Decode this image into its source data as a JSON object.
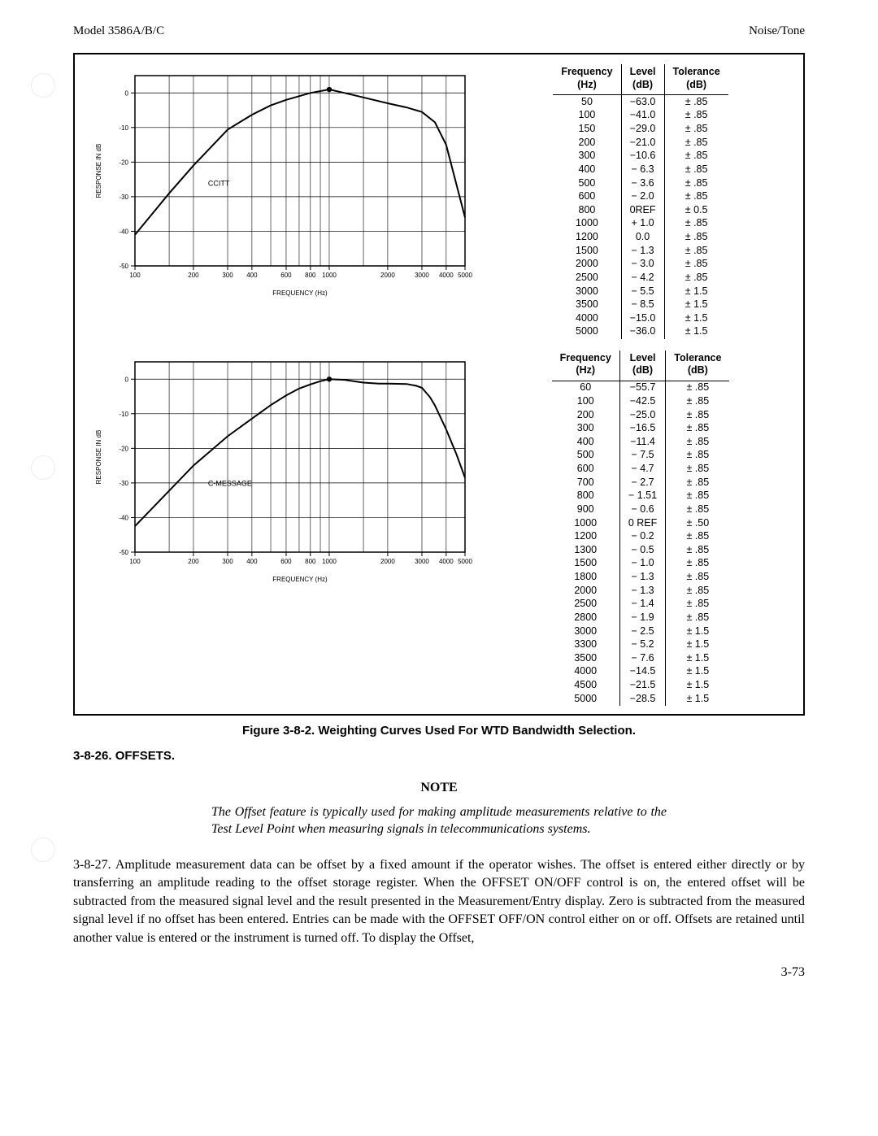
{
  "header": {
    "left": "Model 3586A/B/C",
    "right": "Noise/Tone"
  },
  "chart_common": {
    "xlabel": "FREQUENCY (Hz)",
    "ylabel": "RESPONSE IN dB",
    "xlim": [
      100,
      5000
    ],
    "ylim": [
      -50,
      5
    ],
    "ytick_step": 10,
    "xticks": [
      100,
      200,
      300,
      400,
      600,
      800,
      1000,
      2000,
      3000,
      4000,
      5000
    ],
    "xtick_labels": [
      "100",
      "200",
      "300",
      "400",
      "600",
      "800",
      "1000",
      "2000",
      "3000",
      "4000",
      "5000"
    ],
    "line_color": "#000000",
    "line_width": 2,
    "grid_color": "#000000",
    "background": "#ffffff",
    "axis_fontsize": 8,
    "label_fontsize": 8
  },
  "chart1": {
    "series_label": "CCITT",
    "points": [
      [
        50,
        -63.0
      ],
      [
        100,
        -41.0
      ],
      [
        150,
        -29.0
      ],
      [
        200,
        -21.0
      ],
      [
        300,
        -10.6
      ],
      [
        400,
        -6.3
      ],
      [
        500,
        -3.6
      ],
      [
        600,
        -2.0
      ],
      [
        800,
        0.0
      ],
      [
        1000,
        1.0
      ],
      [
        1200,
        0.0
      ],
      [
        1500,
        -1.3
      ],
      [
        2000,
        -3.0
      ],
      [
        2500,
        -4.2
      ],
      [
        3000,
        -5.5
      ],
      [
        3500,
        -8.5
      ],
      [
        4000,
        -15.0
      ],
      [
        5000,
        -36.0
      ]
    ]
  },
  "chart2": {
    "series_label": "C-MESSAGE",
    "points": [
      [
        60,
        -55.7
      ],
      [
        100,
        -42.5
      ],
      [
        200,
        -25.0
      ],
      [
        300,
        -16.5
      ],
      [
        400,
        -11.4
      ],
      [
        500,
        -7.5
      ],
      [
        600,
        -4.7
      ],
      [
        700,
        -2.7
      ],
      [
        800,
        -1.51
      ],
      [
        900,
        -0.6
      ],
      [
        1000,
        0.0
      ],
      [
        1200,
        -0.2
      ],
      [
        1300,
        -0.5
      ],
      [
        1500,
        -1.0
      ],
      [
        1800,
        -1.3
      ],
      [
        2000,
        -1.3
      ],
      [
        2500,
        -1.4
      ],
      [
        2800,
        -1.9
      ],
      [
        3000,
        -2.5
      ],
      [
        3300,
        -5.2
      ],
      [
        3500,
        -7.6
      ],
      [
        4000,
        -14.5
      ],
      [
        4500,
        -21.5
      ],
      [
        5000,
        -28.5
      ]
    ]
  },
  "table_headers": {
    "col1a": "Frequency",
    "col1b": "(Hz)",
    "col2a": "Level",
    "col2b": "(dB)",
    "col3a": "Tolerance",
    "col3b": "(dB)"
  },
  "table1": {
    "rows": [
      [
        "50",
        "−63.0",
        "± .85"
      ],
      [
        "100",
        "−41.0",
        "± .85"
      ],
      [
        "150",
        "−29.0",
        "± .85"
      ],
      [
        "200",
        "−21.0",
        "± .85"
      ],
      [
        "300",
        "−10.6",
        "± .85"
      ],
      [
        "400",
        "− 6.3",
        "± .85"
      ],
      [
        "500",
        "− 3.6",
        "± .85"
      ],
      [
        "600",
        "− 2.0",
        "± .85"
      ],
      [
        "800",
        "0REF",
        "± 0.5"
      ],
      [
        "1000",
        "+ 1.0",
        "± .85"
      ],
      [
        "1200",
        "0.0",
        "± .85"
      ],
      [
        "1500",
        "− 1.3",
        "± .85"
      ],
      [
        "2000",
        "− 3.0",
        "± .85"
      ],
      [
        "2500",
        "− 4.2",
        "± .85"
      ],
      [
        "3000",
        "− 5.5",
        "± 1.5"
      ],
      [
        "3500",
        "− 8.5",
        "± 1.5"
      ],
      [
        "4000",
        "−15.0",
        "± 1.5"
      ],
      [
        "5000",
        "−36.0",
        "± 1.5"
      ]
    ]
  },
  "table2": {
    "rows": [
      [
        "60",
        "−55.7",
        "± .85"
      ],
      [
        "100",
        "−42.5",
        "± .85"
      ],
      [
        "200",
        "−25.0",
        "± .85"
      ],
      [
        "300",
        "−16.5",
        "± .85"
      ],
      [
        "400",
        "−11.4",
        "± .85"
      ],
      [
        "500",
        "− 7.5",
        "± .85"
      ],
      [
        "600",
        "− 4.7",
        "± .85"
      ],
      [
        "700",
        "− 2.7",
        "± .85"
      ],
      [
        "800",
        "− 1.51",
        "± .85"
      ],
      [
        "900",
        "− 0.6",
        "± .85"
      ],
      [
        "1000",
        "0 REF",
        "± .50"
      ],
      [
        "1200",
        "− 0.2",
        "± .85"
      ],
      [
        "1300",
        "− 0.5",
        "± .85"
      ],
      [
        "1500",
        "− 1.0",
        "± .85"
      ],
      [
        "1800",
        "− 1.3",
        "± .85"
      ],
      [
        "2000",
        "− 1.3",
        "± .85"
      ],
      [
        "2500",
        "− 1.4",
        "± .85"
      ],
      [
        "2800",
        "− 1.9",
        "± .85"
      ],
      [
        "3000",
        "− 2.5",
        "± 1.5"
      ],
      [
        "3300",
        "− 5.2",
        "± 1.5"
      ],
      [
        "3500",
        "− 7.6",
        "± 1.5"
      ],
      [
        "4000",
        "−14.5",
        "± 1.5"
      ],
      [
        "4500",
        "−21.5",
        "± 1.5"
      ],
      [
        "5000",
        "−28.5",
        "± 1.5"
      ]
    ]
  },
  "caption": "Figure 3-8-2.  Weighting Curves Used For WTD Bandwidth Selection.",
  "section_number": "3-8-26.",
  "section_title": "OFFSETS.",
  "note_label": "NOTE",
  "note_text": "The Offset feature is typically used for making amplitude measurements relative to the Test Level Point when measuring signals in telecommunications systems.",
  "para_number": "3-8-27.",
  "para_text": "Amplitude measurement data can be offset by a fixed amount if the operator wishes. The offset is entered either directly or by transferring an amplitude reading to the offset storage register. When the OFFSET ON/OFF control is on, the entered offset will be subtracted from the measured signal level and the result presented in the Measurement/Entry display. Zero is subtracted from the measured signal level if no offset has been entered. Entries can be made with the OFFSET OFF/ON control either on or off. Offsets are retained until another value is entered or the instrument is turned off. To display the Offset,",
  "page_number": "3-73"
}
